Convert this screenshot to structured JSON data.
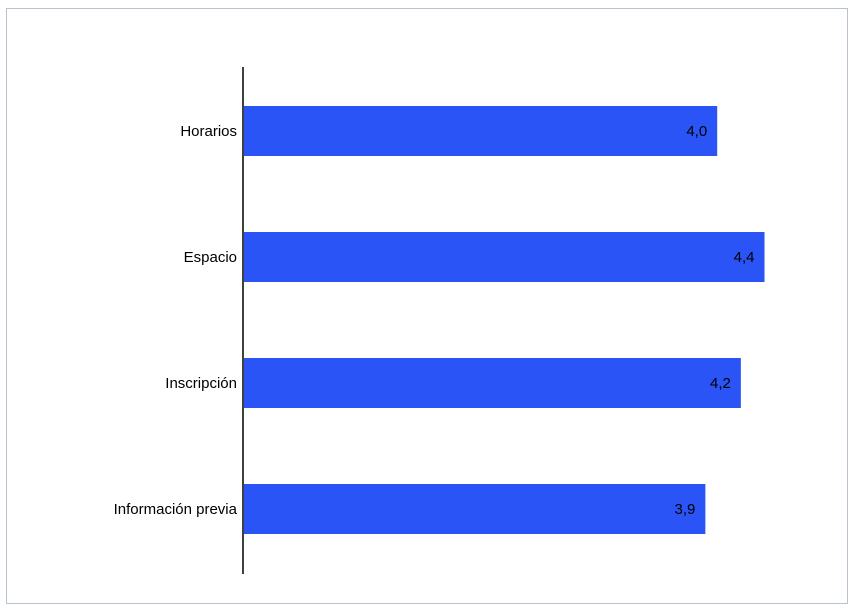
{
  "chart_data": {
    "type": "bar",
    "orientation": "horizontal",
    "categories": [
      "Horarios",
      "Espacio",
      "Inscripción",
      "Información previa"
    ],
    "values": [
      4.0,
      4.4,
      4.2,
      3.9
    ],
    "value_labels": [
      "4,0",
      "4,4",
      "4,2",
      "3,9"
    ],
    "title": "",
    "xlabel": "",
    "ylabel": "",
    "xlim": [
      0,
      4.5
    ],
    "grid": false,
    "legend": "none",
    "bar_color": "#2b54f6",
    "axis_color": "#000000",
    "frame_color": "#b7c3cf"
  }
}
